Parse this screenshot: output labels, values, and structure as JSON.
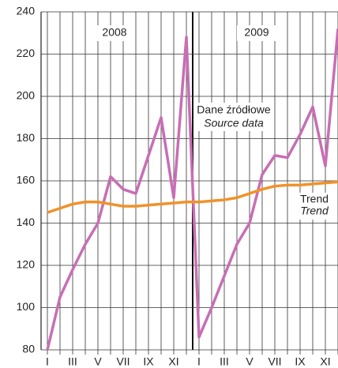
{
  "chart_data": {
    "type": "line",
    "categories": [
      "I",
      null,
      "III",
      null,
      "V",
      null,
      "VII",
      null,
      "IX",
      null,
      "XI",
      null,
      "I",
      null,
      "III",
      null,
      "V",
      null,
      "VII",
      null,
      "IX",
      null,
      "XI",
      null
    ],
    "series": [
      {
        "name": "Dane źródłowe",
        "name_en": "Source data",
        "color": "#c86eb4",
        "values": [
          80,
          105,
          118,
          130,
          140,
          162,
          156,
          154,
          172,
          190,
          152,
          228,
          86,
          100,
          115,
          130,
          140,
          163,
          172,
          171,
          182,
          195,
          167,
          232
        ]
      },
      {
        "name": "Trend",
        "name_en": "Trend",
        "color": "#f0922a",
        "values": [
          145,
          147,
          149,
          150,
          150,
          149,
          148,
          148,
          148.5,
          149,
          149.5,
          150,
          150,
          150.5,
          151,
          152,
          154,
          156,
          157.5,
          158,
          158,
          158.5,
          159,
          159.5
        ]
      }
    ],
    "annotations": [
      "2008",
      "2009"
    ],
    "ylim": [
      80,
      240
    ],
    "yticks": [
      80,
      100,
      120,
      140,
      160,
      180,
      200,
      220,
      240
    ],
    "grid": true
  }
}
